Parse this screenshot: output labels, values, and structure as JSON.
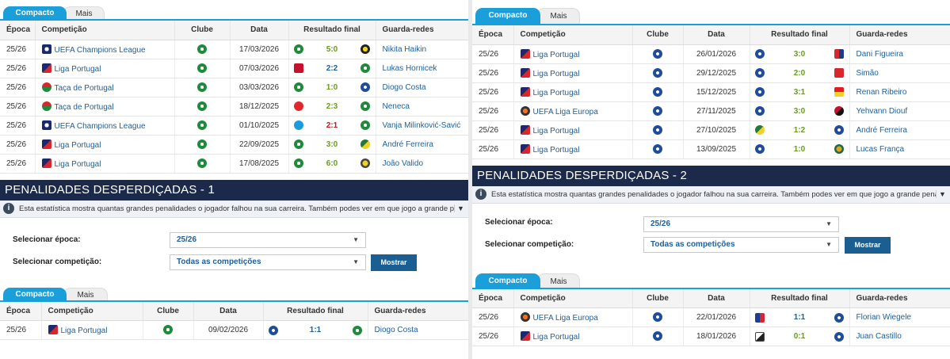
{
  "tabs": {
    "compact": "Compacto",
    "more": "Mais"
  },
  "headers": [
    "Época",
    "Competição",
    "Clube",
    "Data",
    "Resultado final",
    "Guarda-redes"
  ],
  "colors": {
    "accent": "#1a9fdb",
    "header_bg": "#1b2a4a",
    "link": "#1c5f9c",
    "win": "#6a9a1f",
    "loss": "#c01c1c"
  },
  "left": {
    "top_table": [
      {
        "season": "25/26",
        "comp": "UEFA Champions League",
        "comp_icon": "ucl-icon",
        "club_icon": "sporting-icon",
        "date": "17/03/2026",
        "home_icon": "sporting-icon",
        "score": "5:0",
        "result": "win",
        "away_icon": "bodo-glimt-icon",
        "keeper": "Nikita Haikin"
      },
      {
        "season": "25/26",
        "comp": "Liga Portugal",
        "comp_icon": "liga-portugal-icon",
        "club_icon": "sporting-icon",
        "date": "07/03/2026",
        "home_icon": "braga-icon",
        "score": "2:2",
        "result": "draw",
        "away_icon": "sporting-icon",
        "keeper": "Lukas Hornicek"
      },
      {
        "season": "25/26",
        "comp": "Taça de Portugal",
        "comp_icon": "taca-icon",
        "club_icon": "sporting-icon",
        "date": "03/03/2026",
        "home_icon": "sporting-icon",
        "score": "1:0",
        "result": "win",
        "away_icon": "porto-icon",
        "keeper": "Diogo Costa"
      },
      {
        "season": "25/26",
        "comp": "Taça de Portugal",
        "comp_icon": "taca-icon",
        "club_icon": "sporting-icon",
        "date": "18/12/2025",
        "home_icon": "santa-clara-icon",
        "score": "2:3",
        "result": "win",
        "away_icon": "sporting-icon",
        "keeper": "Neneca"
      },
      {
        "season": "25/26",
        "comp": "UEFA Champions League",
        "comp_icon": "ucl-icon",
        "club_icon": "sporting-icon",
        "date": "01/10/2025",
        "home_icon": "napoli-icon",
        "score": "2:1",
        "result": "loss",
        "away_icon": "sporting-icon",
        "keeper": "Vanja Milinković-Savić"
      },
      {
        "season": "25/26",
        "comp": "Liga Portugal",
        "comp_icon": "liga-portugal-icon",
        "club_icon": "sporting-icon",
        "date": "22/09/2025",
        "home_icon": "sporting-icon",
        "score": "3:0",
        "result": "win",
        "away_icon": "moreirense-icon",
        "keeper": "André Ferreira"
      },
      {
        "season": "25/26",
        "comp": "Liga Portugal",
        "comp_icon": "liga-portugal-icon",
        "club_icon": "sporting-icon",
        "date": "17/08/2025",
        "home_icon": "sporting-icon",
        "score": "6:0",
        "result": "win",
        "away_icon": "arouca-icon",
        "keeper": "João Valido"
      }
    ],
    "section_title": "PENALIDADES DESPERDIÇADAS - 1",
    "info_text": "Esta estatística mostra quantas grandes penalidades o jogador falhou na sua carreira. Também podes ver em que jogo a grande penalidade foi ...",
    "filter_season_label": "Selecionar época:",
    "filter_season_value": "25/26",
    "filter_comp_label": "Selecionar competição:",
    "filter_comp_value": "Todas as competições",
    "show_button": "Mostrar",
    "bottom_table": [
      {
        "season": "25/26",
        "comp": "Liga Portugal",
        "comp_icon": "liga-portugal-icon",
        "club_icon": "sporting-icon",
        "date": "09/02/2026",
        "home_icon": "porto-icon",
        "score": "1:1",
        "result": "draw",
        "away_icon": "sporting-icon",
        "keeper": "Diogo Costa"
      }
    ]
  },
  "right": {
    "top_table": [
      {
        "season": "25/26",
        "comp": "Liga Portugal",
        "comp_icon": "liga-portugal-icon",
        "club_icon": "porto-icon",
        "date": "26/01/2026",
        "home_icon": "porto-icon",
        "score": "3:0",
        "result": "win",
        "away_icon": "gil-vicente-icon",
        "keeper": "Dani Figueira"
      },
      {
        "season": "25/26",
        "comp": "Liga Portugal",
        "comp_icon": "liga-portugal-icon",
        "club_icon": "porto-icon",
        "date": "29/12/2025",
        "home_icon": "porto-icon",
        "score": "2:0",
        "result": "win",
        "away_icon": "afs-icon",
        "keeper": "Simão"
      },
      {
        "season": "25/26",
        "comp": "Liga Portugal",
        "comp_icon": "liga-portugal-icon",
        "club_icon": "porto-icon",
        "date": "15/12/2025",
        "home_icon": "porto-icon",
        "score": "3:1",
        "result": "win",
        "away_icon": "estrela-icon",
        "keeper": "Renan Ribeiro"
      },
      {
        "season": "25/26",
        "comp": "UEFA Liga Europa",
        "comp_icon": "uel-icon",
        "club_icon": "porto-icon",
        "date": "27/11/2025",
        "home_icon": "porto-icon",
        "score": "3:0",
        "result": "win",
        "away_icon": "nice-icon",
        "keeper": "Yehvann Diouf"
      },
      {
        "season": "25/26",
        "comp": "Liga Portugal",
        "comp_icon": "liga-portugal-icon",
        "club_icon": "porto-icon",
        "date": "27/10/2025",
        "home_icon": "moreirense-icon",
        "score": "1:2",
        "result": "win",
        "away_icon": "porto-icon",
        "keeper": "André Ferreira"
      },
      {
        "season": "25/26",
        "comp": "Liga Portugal",
        "comp_icon": "liga-portugal-icon",
        "club_icon": "porto-icon",
        "date": "13/09/2025",
        "home_icon": "porto-icon",
        "score": "1:0",
        "result": "win",
        "away_icon": "rio-ave-icon",
        "keeper": "Lucas França"
      }
    ],
    "section_title": "PENALIDADES DESPERDIÇADAS - 2",
    "info_text": "Esta estatística mostra quantas grandes penalidades o jogador falhou na sua carreira. Também podes ver em que jogo a grande penalidade foi ...",
    "filter_season_label": "Selecionar época:",
    "filter_season_value": "25/26",
    "filter_comp_label": "Selecionar competição:",
    "filter_comp_value": "Todas as competições",
    "show_button": "Mostrar",
    "bottom_table": [
      {
        "season": "25/26",
        "comp": "UEFA Liga Europa",
        "comp_icon": "uel-icon",
        "club_icon": "porto-icon",
        "date": "22/01/2026",
        "home_icon": "viktoria-plzen-icon",
        "score": "1:1",
        "result": "draw",
        "away_icon": "porto-icon",
        "keeper": "Florian Wiegele"
      },
      {
        "season": "25/26",
        "comp": "Liga Portugal",
        "comp_icon": "liga-portugal-icon",
        "club_icon": "porto-icon",
        "date": "18/01/2026",
        "home_icon": "vitoria-guimaraes-icon",
        "score": "0:1",
        "result": "win",
        "away_icon": "porto-icon",
        "keeper": "Juan Castillo"
      }
    ]
  }
}
